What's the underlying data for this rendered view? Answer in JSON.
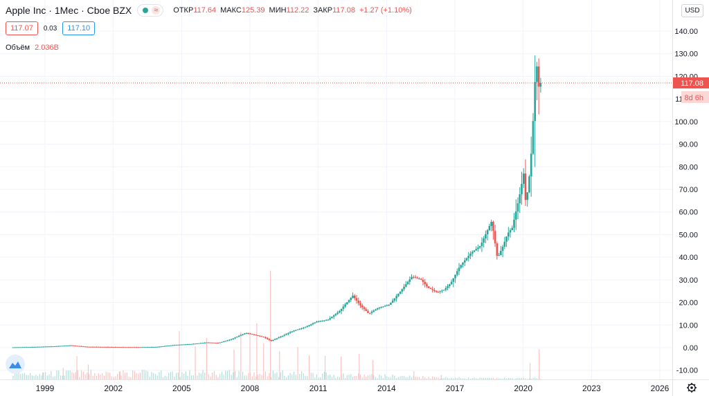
{
  "header": {
    "symbol_title": "Apple Inc · 1Мес · Cboe BZX",
    "status_icon": "market-status-icon",
    "status_colors": {
      "dot": "#26a69a",
      "wave": "#ef5350"
    },
    "status_symbol": "≈",
    "ohlc": {
      "open_label": "ОТКР",
      "open_value": "117.64",
      "high_label": "МАКС",
      "high_value": "125.39",
      "low_label": "МИН",
      "low_value": "112.22",
      "close_label": "ЗАКР",
      "close_value": "117.08",
      "change": "+1.27 (+1.10%)"
    },
    "bid": "117.07",
    "spread": "0.03",
    "ask": "117.10",
    "volume_label": "Объём",
    "volume_value": "2.036B",
    "currency": "USD"
  },
  "price_axis": {
    "last_price_label": "117.08",
    "countdown_label": "8d 6h",
    "settings_icon": "gear-icon"
  },
  "colors": {
    "up": "#26a69a",
    "down": "#ef5350",
    "volume_up": "#b2dfdb",
    "volume_down": "#f8c5c3",
    "grid": "#f0f3fa",
    "axis_text": "#131722",
    "accent": "#2962ff"
  },
  "chart_data": {
    "type": "candlestick",
    "title": "Apple Inc · 1Мес · Cboe BZX",
    "interval": "1 month",
    "y_ticks": [
      -10,
      0,
      10,
      20,
      30,
      40,
      50,
      60,
      70,
      80,
      90,
      100,
      110,
      120,
      130,
      140
    ],
    "ylim": [
      -13,
      147
    ],
    "x_ticks": [
      "1999",
      "2002",
      "2005",
      "2008",
      "2011",
      "2014",
      "2017",
      "2020",
      "2023",
      "2026"
    ],
    "xlim": [
      1997.6,
      2027.2
    ],
    "grid": true,
    "last_price": 117.08,
    "volume_overlay": true,
    "volume_max_billion": 12,
    "price_path": [
      [
        1997.6,
        0.12
      ],
      [
        1998.5,
        0.3
      ],
      [
        1999.5,
        0.6
      ],
      [
        2000.2,
        1.0
      ],
      [
        2000.9,
        0.4
      ],
      [
        2001.5,
        0.35
      ],
      [
        2002.5,
        0.25
      ],
      [
        2003.3,
        0.22
      ],
      [
        2004.0,
        0.35
      ],
      [
        2004.8,
        1.2
      ],
      [
        2005.5,
        1.6
      ],
      [
        2006.2,
        2.3
      ],
      [
        2006.7,
        2.1
      ],
      [
        2007.2,
        3.5
      ],
      [
        2007.9,
        6.5
      ],
      [
        2008.3,
        5.6
      ],
      [
        2008.7,
        4.6
      ],
      [
        2009.0,
        3.0
      ],
      [
        2009.5,
        5.2
      ],
      [
        2010.0,
        7.5
      ],
      [
        2010.5,
        9.0
      ],
      [
        2011.0,
        11.5
      ],
      [
        2011.5,
        12.3
      ],
      [
        2012.0,
        16.0
      ],
      [
        2012.6,
        23.0
      ],
      [
        2012.9,
        19.0
      ],
      [
        2013.3,
        15.0
      ],
      [
        2013.7,
        17.5
      ],
      [
        2014.2,
        19.0
      ],
      [
        2014.7,
        25.0
      ],
      [
        2015.2,
        31.5
      ],
      [
        2015.6,
        30.0
      ],
      [
        2015.9,
        26.5
      ],
      [
        2016.3,
        24.5
      ],
      [
        2016.6,
        25.5
      ],
      [
        2016.9,
        28.5
      ],
      [
        2017.3,
        36.0
      ],
      [
        2017.8,
        42.0
      ],
      [
        2018.2,
        45.0
      ],
      [
        2018.7,
        56.0
      ],
      [
        2018.95,
        39.5
      ],
      [
        2019.2,
        45.0
      ],
      [
        2019.4,
        50.5
      ],
      [
        2019.6,
        53.0
      ],
      [
        2019.9,
        66.0
      ],
      [
        2020.1,
        77.0
      ],
      [
        2020.2,
        63.0
      ],
      [
        2020.4,
        80.0
      ],
      [
        2020.55,
        106.0
      ],
      [
        2020.65,
        129.0
      ],
      [
        2020.75,
        115.0
      ],
      [
        2020.83,
        117.08
      ]
    ],
    "volume_spikes_billion": [
      [
        1998.1,
        1.3
      ],
      [
        1998.9,
        1.8
      ],
      [
        1999.8,
        3.0
      ],
      [
        2000.4,
        6.1
      ],
      [
        2000.9,
        3.9
      ],
      [
        2002.3,
        2.1
      ],
      [
        2004.9,
        12.7
      ],
      [
        2005.6,
        8.7
      ],
      [
        2006.1,
        10.9
      ],
      [
        2007.3,
        7.9
      ],
      [
        2007.6,
        12.5
      ],
      [
        2008.0,
        12.5
      ],
      [
        2008.3,
        14.8
      ],
      [
        2008.6,
        9.5
      ],
      [
        2008.9,
        28.6
      ],
      [
        2009.3,
        7.4
      ],
      [
        2010.1,
        8.5
      ],
      [
        2010.6,
        6.3
      ],
      [
        2011.3,
        6.2
      ],
      [
        2012.0,
        6.0
      ],
      [
        2012.8,
        6.7
      ],
      [
        2013.4,
        5.1
      ],
      [
        2015.2,
        2.2
      ],
      [
        2016.4,
        1.2
      ],
      [
        2020.3,
        4.3
      ],
      [
        2020.7,
        7.9
      ]
    ]
  }
}
